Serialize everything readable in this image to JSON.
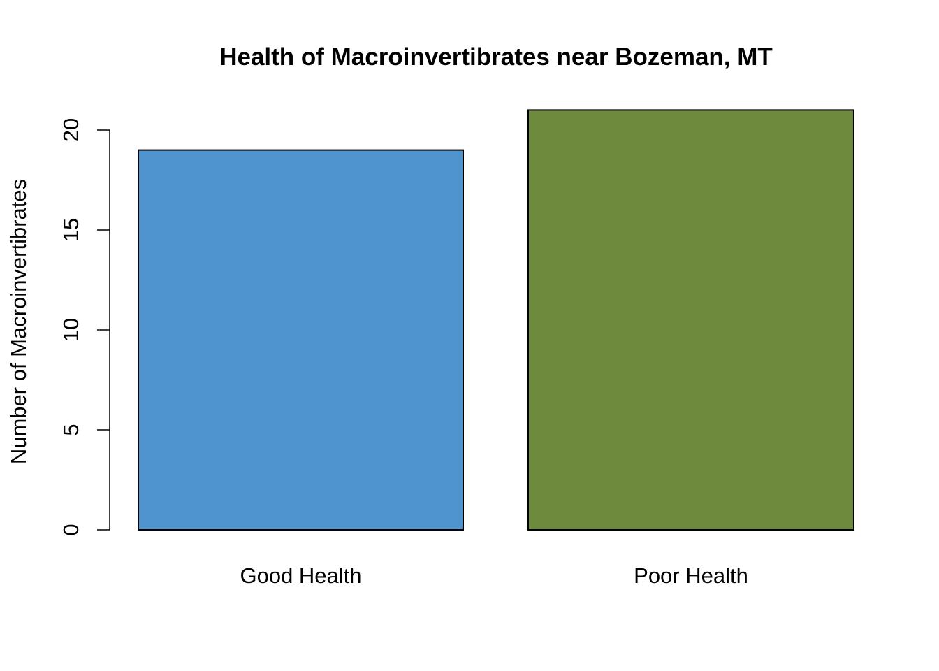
{
  "chart_data": {
    "type": "bar",
    "title": "Health of Macroinvertibrates near Bozeman, MT",
    "xlabel": "",
    "ylabel": "Number of Macroinvertibrates",
    "categories": [
      "Good Health",
      "Poor Health"
    ],
    "values": [
      19,
      21
    ],
    "colors": [
      "#4F94CD",
      "#6E8B3D"
    ],
    "ylim": [
      0,
      21
    ],
    "yticks": [
      0,
      5,
      10,
      15,
      20
    ],
    "grid": false,
    "legend": "none"
  }
}
